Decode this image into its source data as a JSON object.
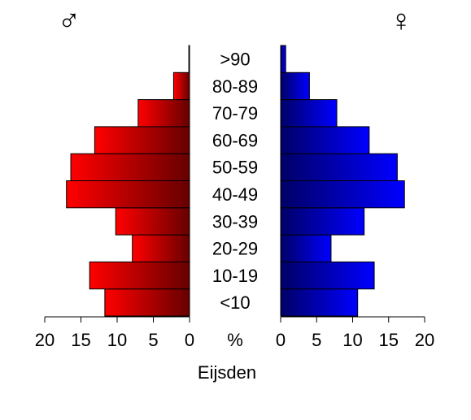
{
  "chart_data": {
    "type": "pyramid",
    "xlabel": "Eijsden",
    "axis_label": "%",
    "categories": [
      "<10",
      "10-19",
      "20-29",
      "30-39",
      "40-49",
      "50-59",
      "60-69",
      "70-79",
      "80-89",
      ">90"
    ],
    "series": [
      {
        "name": "♂",
        "color": "#ff0000",
        "side": "left",
        "values": [
          11.7,
          13.8,
          7.9,
          10.2,
          17.0,
          16.4,
          13.1,
          7.1,
          2.2,
          0.1
        ]
      },
      {
        "name": "♀",
        "color": "#0000ff",
        "side": "right",
        "values": [
          10.7,
          13.0,
          7.0,
          11.6,
          17.2,
          16.2,
          12.3,
          7.8,
          4.0,
          0.7
        ]
      }
    ],
    "xlim": [
      0,
      20
    ],
    "xticks": [
      0,
      5,
      10,
      15,
      20
    ]
  }
}
